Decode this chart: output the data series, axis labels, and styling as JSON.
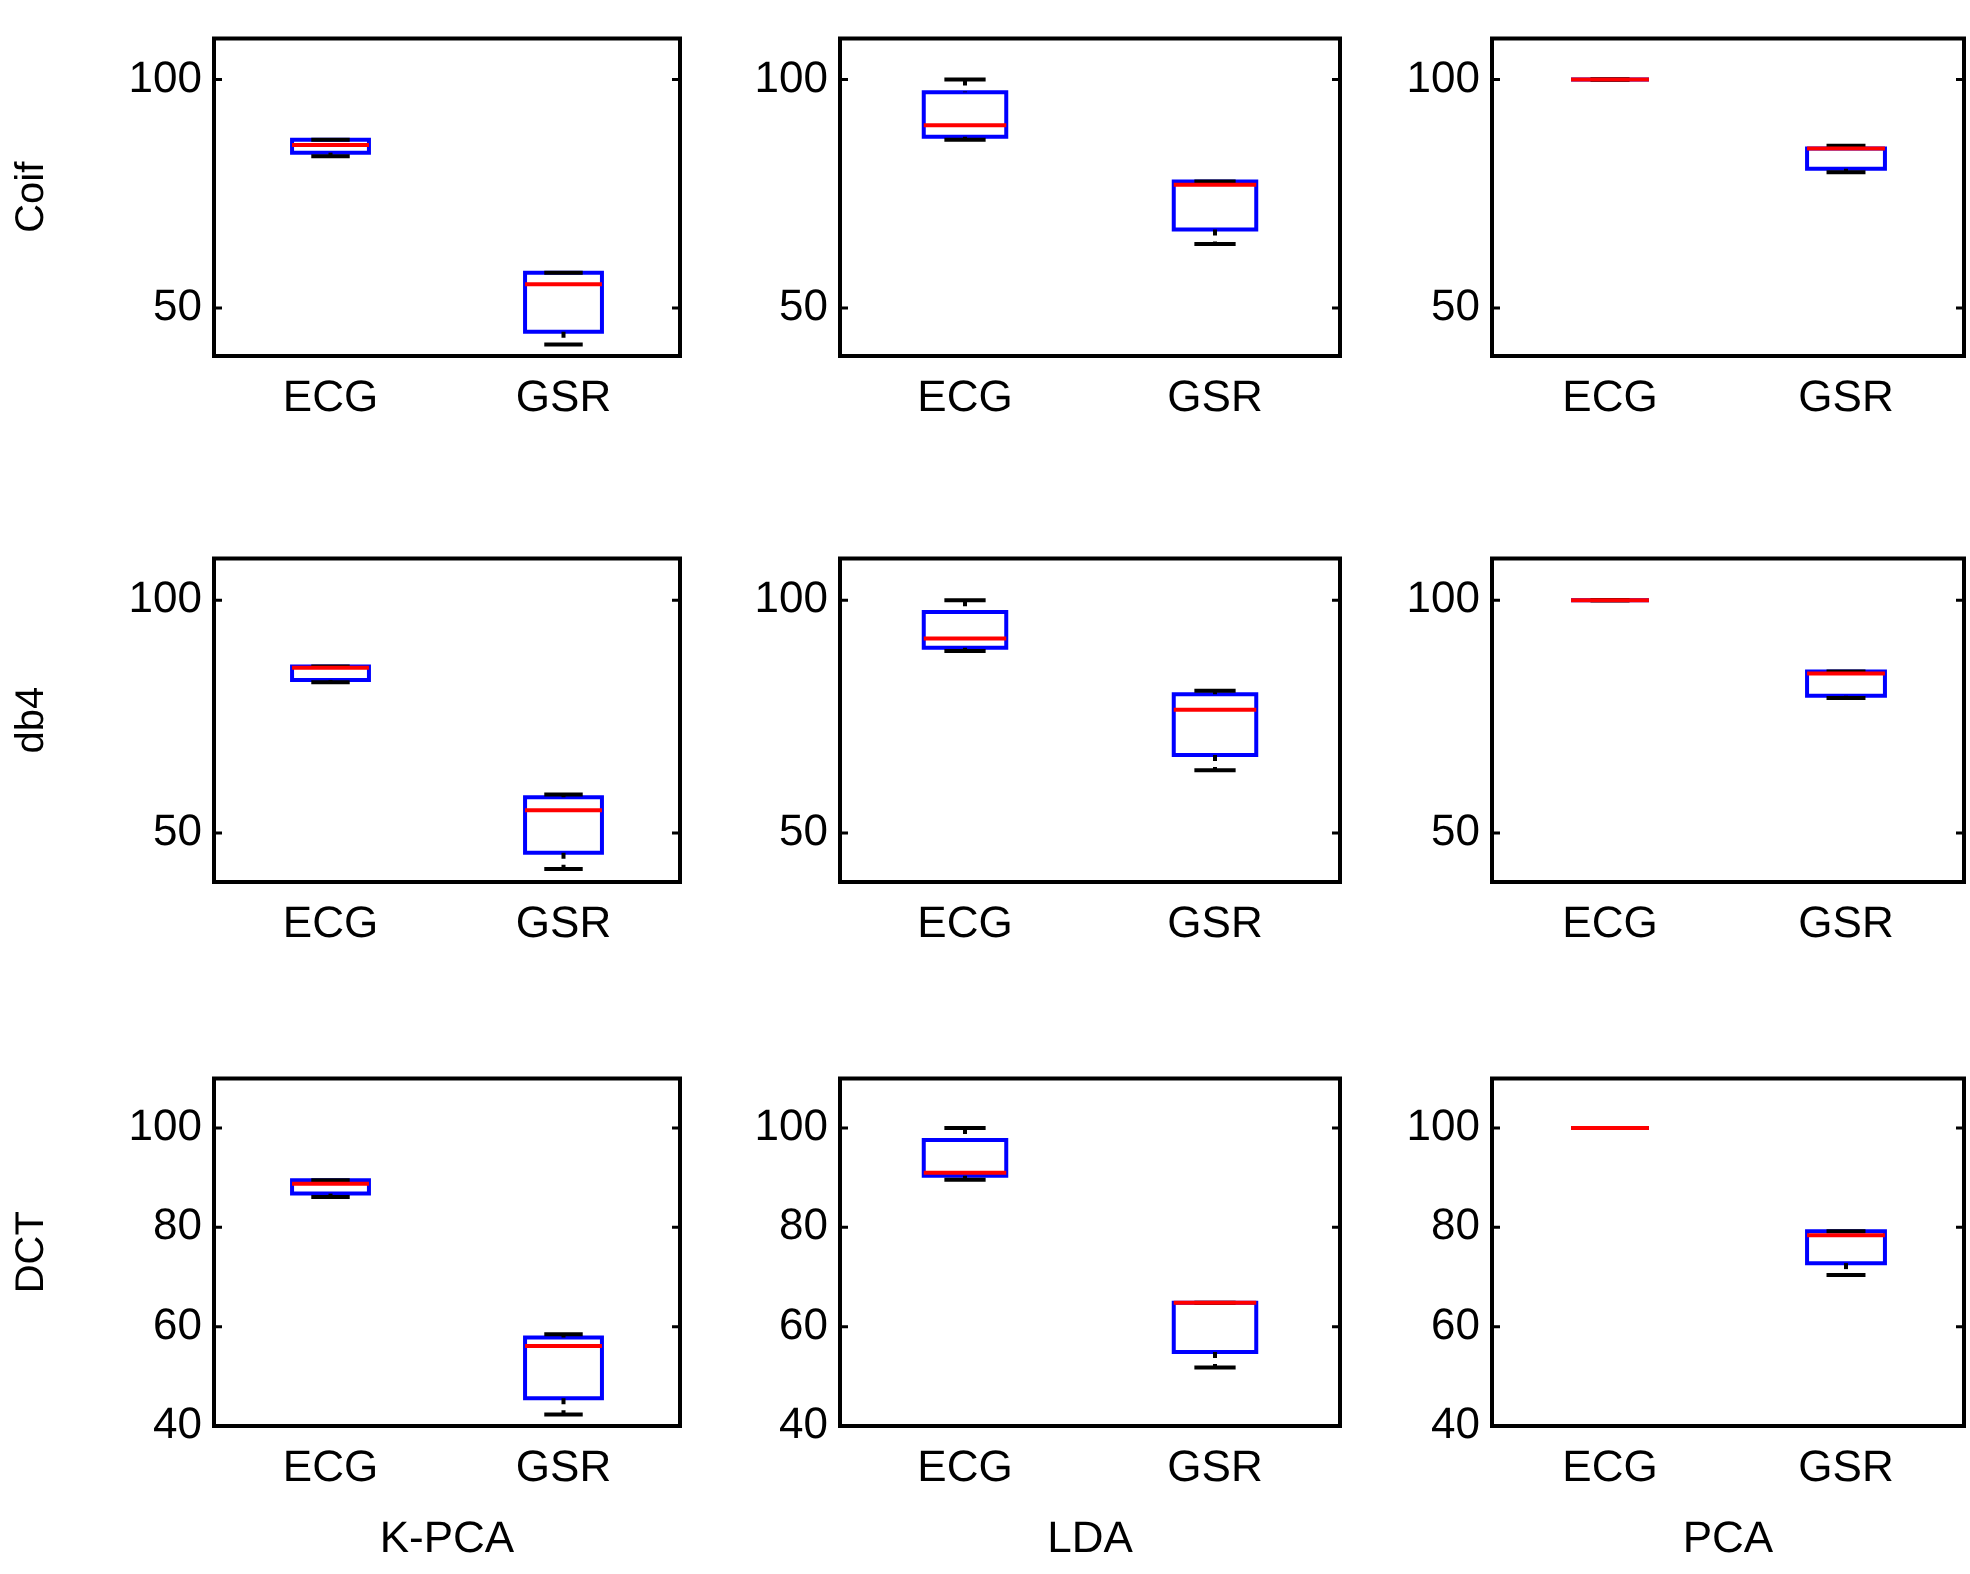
{
  "chart_data": [
    {
      "type": "box",
      "ylabel": "Coif",
      "categories": [
        "ECG",
        "GSR"
      ],
      "ylim": [
        39.5,
        109
      ],
      "yticks": [
        50,
        100
      ],
      "series": [
        {
          "color": "#0000ff",
          "boxes": [
            {
              "low": 83.2,
              "q1": 84,
              "median": 85.7,
              "q3": 86.8,
              "high": 86.8
            },
            {
              "low": 42,
              "q1": 44.8,
              "median": 55.2,
              "q3": 57.7,
              "high": 57.7
            }
          ]
        }
      ]
    },
    {
      "type": "box",
      "categories": [
        "ECG",
        "GSR"
      ],
      "ylim": [
        39.5,
        109
      ],
      "yticks": [
        50,
        100
      ],
      "series": [
        {
          "color": "#0000ff",
          "boxes": [
            {
              "low": 86.8,
              "q1": 87.5,
              "median": 90,
              "q3": 97.2,
              "high": 100
            },
            {
              "low": 64,
              "q1": 67.2,
              "median": 77,
              "q3": 77.7,
              "high": 77.7
            }
          ]
        }
      ]
    },
    {
      "type": "box",
      "categories": [
        "ECG",
        "GSR"
      ],
      "ylim": [
        39.5,
        109
      ],
      "yticks": [
        50,
        100
      ],
      "series": [
        {
          "color": "#0000ff",
          "boxes": [
            {
              "low": 100,
              "q1": 100,
              "median": 100,
              "q3": 100,
              "high": 100
            },
            {
              "low": 79.7,
              "q1": 80.5,
              "median": 84.9,
              "q3": 84.9,
              "high": 85.5
            }
          ]
        }
      ]
    },
    {
      "type": "box",
      "ylabel": "db4",
      "categories": [
        "ECG",
        "GSR"
      ],
      "ylim": [
        39.5,
        109
      ],
      "yticks": [
        50,
        100
      ],
      "series": [
        {
          "color": "#0000ff",
          "boxes": [
            {
              "low": 82.4,
              "q1": 82.9,
              "median": 85.5,
              "q3": 85.8,
              "high": 85.8
            },
            {
              "low": 42.3,
              "q1": 45.8,
              "median": 54.9,
              "q3": 57.7,
              "high": 58.3
            }
          ]
        }
      ]
    },
    {
      "type": "box",
      "categories": [
        "ECG",
        "GSR"
      ],
      "ylim": [
        39.5,
        109
      ],
      "yticks": [
        50,
        100
      ],
      "series": [
        {
          "color": "#0000ff",
          "boxes": [
            {
              "low": 89.1,
              "q1": 89.8,
              "median": 91.8,
              "q3": 97.5,
              "high": 100
            },
            {
              "low": 63.5,
              "q1": 66.8,
              "median": 76.5,
              "q3": 79.8,
              "high": 80.6
            }
          ]
        }
      ]
    },
    {
      "type": "box",
      "categories": [
        "ECG",
        "GSR"
      ],
      "ylim": [
        39.5,
        109
      ],
      "yticks": [
        50,
        100
      ],
      "series": [
        {
          "color": "#0000ff",
          "boxes": [
            {
              "low": 100,
              "q1": 100,
              "median": 100,
              "q3": 100,
              "high": 100
            },
            {
              "low": 79,
              "q1": 79.5,
              "median": 84.3,
              "q3": 84.7,
              "high": 84.7
            }
          ]
        }
      ]
    },
    {
      "type": "box",
      "ylabel": "DCT",
      "xlabel": "K-PCA",
      "categories": [
        "ECG",
        "GSR"
      ],
      "ylim": [
        40,
        110
      ],
      "yticks": [
        40,
        60,
        80,
        100
      ],
      "series": [
        {
          "color": "#0000ff",
          "boxes": [
            {
              "low": 86.1,
              "q1": 86.8,
              "median": 88.8,
              "q3": 89.5,
              "high": 89.5
            },
            {
              "low": 42.3,
              "q1": 45.6,
              "median": 56.1,
              "q3": 57.8,
              "high": 58.5
            }
          ]
        }
      ]
    },
    {
      "type": "box",
      "xlabel": "LDA",
      "categories": [
        "ECG",
        "GSR"
      ],
      "ylim": [
        40,
        110
      ],
      "yticks": [
        40,
        60,
        80,
        100
      ],
      "series": [
        {
          "color": "#0000ff",
          "boxes": [
            {
              "low": 89.6,
              "q1": 90.4,
              "median": 91,
              "q3": 97.6,
              "high": 100
            },
            {
              "low": 51.8,
              "q1": 54.9,
              "median": 64.8,
              "q3": 64.8,
              "high": 64.8
            }
          ]
        }
      ]
    },
    {
      "type": "box",
      "xlabel": "PCA",
      "categories": [
        "ECG",
        "GSR"
      ],
      "ylim": [
        40,
        110
      ],
      "yticks": [
        40,
        60,
        80,
        100
      ],
      "series": [
        {
          "color": "#0000ff",
          "boxes": [
            {
              "low": 100,
              "q1": 100,
              "median": 100,
              "q3": 100,
              "high": 100
            },
            {
              "low": 70.4,
              "q1": 72.8,
              "median": 78.4,
              "q3": 79.2,
              "high": 79.2
            }
          ]
        }
      ]
    }
  ]
}
